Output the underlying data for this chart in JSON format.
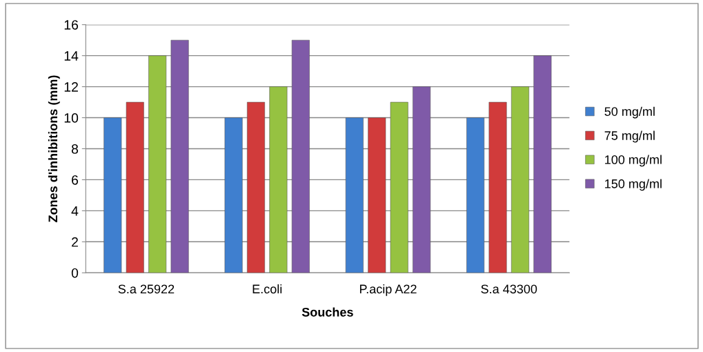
{
  "chart_data": {
    "type": "bar",
    "xlabel": "Souches",
    "ylabel": "Zones d'inhibitions (mm)",
    "categories": [
      "S.a 25922",
      "E.coli",
      "P.acip A22",
      "S.a 43300"
    ],
    "series": [
      {
        "name": "50 mg/ml",
        "color": "#3f7fcf",
        "values": [
          10,
          10,
          10,
          10
        ]
      },
      {
        "name": "75 mg/ml",
        "color": "#d13b3b",
        "values": [
          11,
          11,
          10,
          11
        ]
      },
      {
        "name": "100 mg/ml",
        "color": "#96c241",
        "values": [
          14,
          12,
          11,
          12
        ]
      },
      {
        "name": "150 mg/ml",
        "color": "#7f5aa8",
        "values": [
          15,
          15,
          12,
          14
        ]
      }
    ],
    "ylim": [
      0,
      16
    ],
    "yticks": [
      0,
      2,
      4,
      6,
      8,
      10,
      12,
      14,
      16
    ],
    "grid": "y",
    "legend": "right"
  }
}
